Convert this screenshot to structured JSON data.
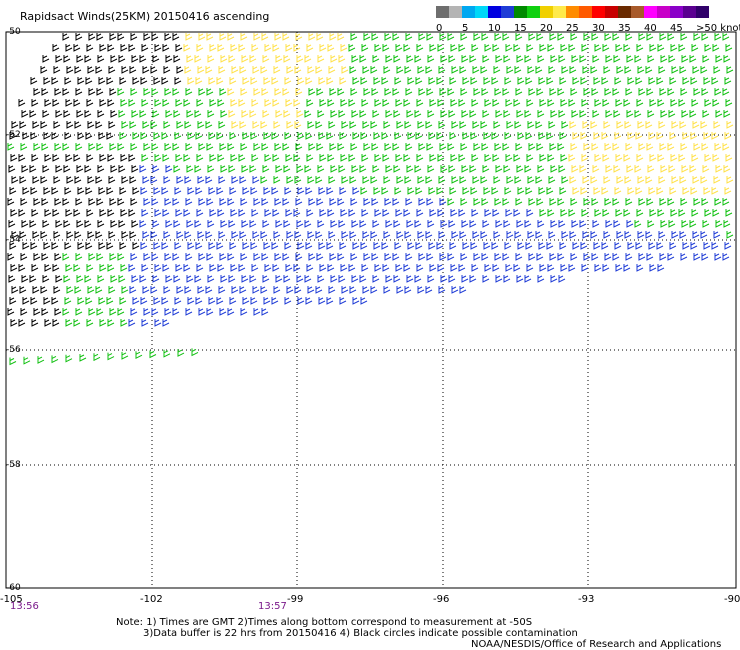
{
  "title": "Rapidsact Winds(25KM) 20150416 ascending",
  "legend": {
    "bins": [
      {
        "label": "0",
        "color": "#6e6e6e"
      },
      {
        "label": "",
        "color": "#b4b4b4"
      },
      {
        "label": "5",
        "color": "#00a8f0"
      },
      {
        "label": "",
        "color": "#00d8f8"
      },
      {
        "label": "10",
        "color": "#0000e0"
      },
      {
        "label": "",
        "color": "#1f3cd6"
      },
      {
        "label": "15",
        "color": "#008a00"
      },
      {
        "label": "",
        "color": "#10d010"
      },
      {
        "label": "20",
        "color": "#f0d000"
      },
      {
        "label": "",
        "color": "#ffea4a"
      },
      {
        "label": "25",
        "color": "#ff8c00"
      },
      {
        "label": "",
        "color": "#ff5a00"
      },
      {
        "label": "30",
        "color": "#ff0000"
      },
      {
        "label": "",
        "color": "#c80000"
      },
      {
        "label": "35",
        "color": "#6a2a00"
      },
      {
        "label": "",
        "color": "#a85a2a"
      },
      {
        "label": "40",
        "color": "#ff00ff"
      },
      {
        "label": "",
        "color": "#c800c8"
      },
      {
        "label": "45",
        "color": "#8a00c8"
      },
      {
        "label": "",
        "color": "#5a0090"
      },
      {
        "label": ">50 knots",
        "color": "#30006a"
      }
    ]
  },
  "lat_labels": [
    "-50",
    "-52",
    "-54",
    "-56",
    "-58",
    "-60"
  ],
  "lon_labels": [
    "-105",
    "-102",
    "-99",
    "-96",
    "-93",
    "-90"
  ],
  "time_labels": [
    "13:56",
    "13:57"
  ],
  "notes": {
    "line1": "Note: 1) Times are GMT 2)Times along bottom correspond to measurement at -50S",
    "line2": "3)Data buffer is 22 hrs from 20150416 4) Black circles indicate possible contamination",
    "line3": "NOAA/NESDIS/Office of Research and Applications"
  },
  "colors": {
    "black": "#000000",
    "blue": "#1f3cd6",
    "green": "#10c010",
    "yellow": "#ffe14a"
  }
}
